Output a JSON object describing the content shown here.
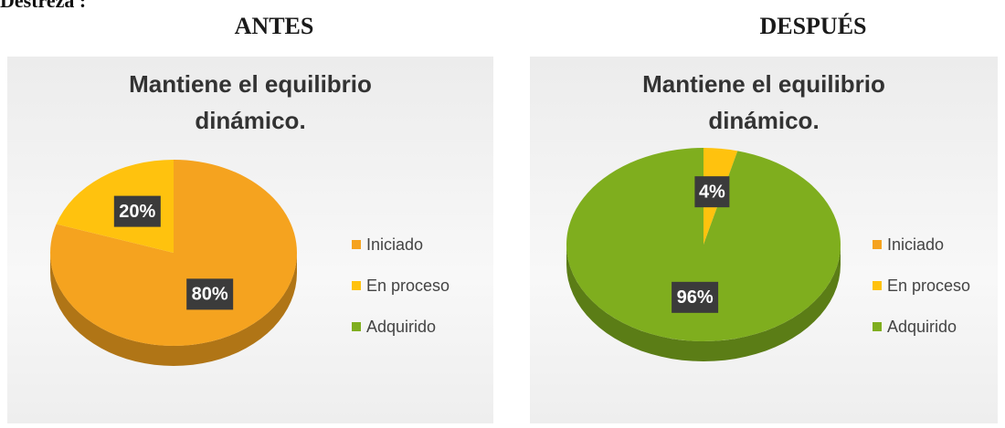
{
  "page_title": "Destreza :",
  "chart_data": [
    {
      "type": "pie",
      "heading": "ANTES",
      "title": "Mantiene el equilibrio dinámico.",
      "categories": [
        "Iniciado",
        "En proceso",
        "Adquirido"
      ],
      "values": [
        80,
        20,
        0
      ],
      "value_labels": [
        "80%",
        "20%",
        null
      ],
      "colors": [
        "#f5a31f",
        "#ffc20e",
        "#7fae1e"
      ],
      "legend": "right"
    },
    {
      "type": "pie",
      "heading": "DESPUÉS",
      "title": "Mantiene el equilibrio dinámico.",
      "categories": [
        "Iniciado",
        "En proceso",
        "Adquirido"
      ],
      "values": [
        0,
        4,
        96
      ],
      "value_labels": [
        null,
        "4%",
        "96%"
      ],
      "colors": [
        "#f5a31f",
        "#ffc20e",
        "#7fae1e"
      ],
      "legend": "right"
    }
  ]
}
